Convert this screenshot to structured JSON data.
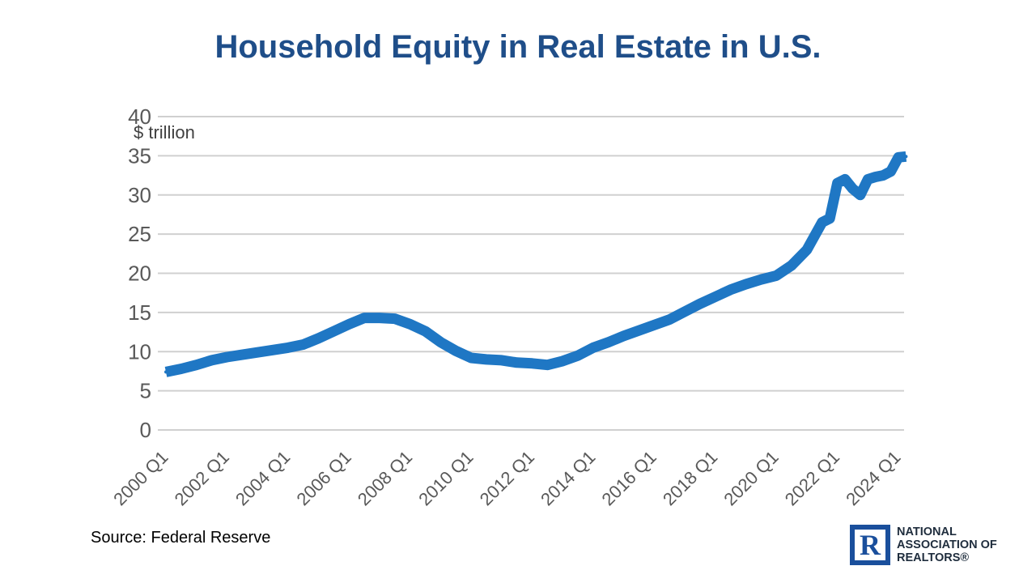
{
  "title": "Household Equity in Real Estate in U.S.",
  "source": "Source: Federal Reserve",
  "logo": {
    "line1": "NATIONAL",
    "line2": "ASSOCIATION OF",
    "line3": "REALTORS®",
    "mark": "R"
  },
  "colors": {
    "title": "#1f4e89",
    "series": "#1f77c4",
    "gridline": "#d0d0d0",
    "logo": "#1a4f9c"
  },
  "chart_data": {
    "type": "line",
    "title": "Household Equity in Real Estate in U.S.",
    "ylabel": "$ trillion",
    "xlabel": "",
    "ylim": [
      0,
      40
    ],
    "yticks": [
      0,
      5,
      10,
      15,
      20,
      25,
      30,
      35,
      40
    ],
    "xticks": [
      "2000 Q1",
      "2002 Q1",
      "2004 Q1",
      "2006 Q1",
      "2008 Q1",
      "2010 Q1",
      "2012 Q1",
      "2014 Q1",
      "2016 Q1",
      "2018 Q1",
      "2020 Q1",
      "2022 Q1",
      "2024 Q1"
    ],
    "grid": true,
    "legend": false,
    "series": [
      {
        "x": [
          "2000 Q1",
          "2000 Q3",
          "2001 Q1",
          "2001 Q3",
          "2002 Q1",
          "2002 Q3",
          "2003 Q1",
          "2003 Q3",
          "2004 Q1",
          "2004 Q3",
          "2005 Q1",
          "2005 Q3",
          "2006 Q1",
          "2006 Q3",
          "2007 Q1",
          "2007 Q3",
          "2008 Q1",
          "2008 Q3",
          "2009 Q1",
          "2009 Q3",
          "2010 Q1",
          "2010 Q3",
          "2011 Q1",
          "2011 Q3",
          "2012 Q1",
          "2012 Q3",
          "2013 Q1",
          "2013 Q3",
          "2014 Q1",
          "2014 Q3",
          "2015 Q1",
          "2015 Q3",
          "2016 Q1",
          "2016 Q3",
          "2017 Q1",
          "2017 Q3",
          "2018 Q1",
          "2018 Q3",
          "2019 Q1",
          "2019 Q3",
          "2020 Q1",
          "2020 Q3",
          "2021 Q1",
          "2021 Q3",
          "2021 Q4",
          "2022 Q1",
          "2022 Q2",
          "2022 Q3",
          "2022 Q4",
          "2023 Q1",
          "2023 Q2",
          "2023 Q3",
          "2023 Q4",
          "2024 Q1",
          "2024 Q2"
        ],
        "values": [
          7.4,
          7.8,
          8.3,
          8.9,
          9.3,
          9.6,
          9.9,
          10.2,
          10.5,
          10.9,
          11.7,
          12.6,
          13.5,
          14.3,
          14.3,
          14.2,
          13.5,
          12.6,
          11.2,
          10.1,
          9.2,
          9.0,
          8.9,
          8.6,
          8.5,
          8.3,
          8.8,
          9.5,
          10.5,
          11.2,
          12.0,
          12.7,
          13.4,
          14.1,
          15.1,
          16.1,
          17.0,
          17.9,
          18.6,
          19.2,
          19.7,
          21.0,
          23.0,
          26.5,
          27.0,
          31.5,
          32.0,
          30.8,
          30.0,
          32.0,
          32.3,
          32.5,
          33.0,
          34.8,
          34.9
        ]
      }
    ]
  }
}
